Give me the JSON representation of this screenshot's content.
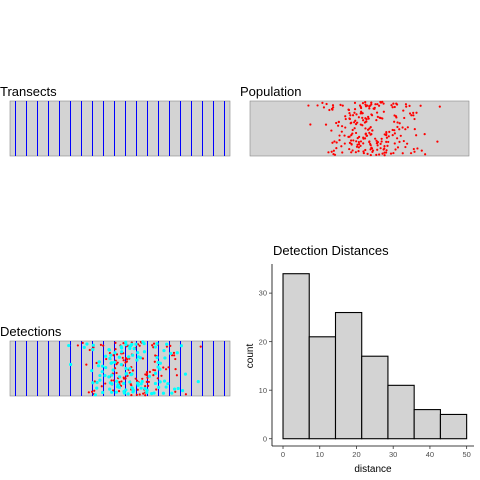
{
  "panels": {
    "transects": {
      "title": "Transects"
    },
    "population": {
      "title": "Population"
    },
    "detections": {
      "title": "Detections"
    },
    "distances": {
      "title": "Detection Distances"
    }
  },
  "colors": {
    "region_fill": "#d3d3d3",
    "region_border": "#888888",
    "transect_line": "#0000ff",
    "animal": "#ff0000",
    "detected": "#00ffff",
    "bar_fill": "#d3d3d3",
    "bar_border": "#000000"
  },
  "chart_data": [
    {
      "type": "line",
      "title": "Transects",
      "transect_count": 20,
      "grid": false
    },
    {
      "type": "scatter",
      "title": "Population",
      "animal_count": 250,
      "grid": false
    },
    {
      "type": "scatter",
      "title": "Detections",
      "transect_count": 20,
      "animal_count": 250,
      "detected_count": 120,
      "grid": false
    },
    {
      "type": "bar",
      "title": "Detection Distances",
      "xlabel": "distance",
      "ylabel": "count",
      "bin_width": 7.14,
      "bins": [
        {
          "x0": 0,
          "x1": 7.14,
          "count": 34
        },
        {
          "x0": 7.14,
          "x1": 14.29,
          "count": 21
        },
        {
          "x0": 14.29,
          "x1": 21.43,
          "count": 26
        },
        {
          "x0": 21.43,
          "x1": 28.57,
          "count": 17
        },
        {
          "x0": 28.57,
          "x1": 35.71,
          "count": 11
        },
        {
          "x0": 35.71,
          "x1": 42.86,
          "count": 6
        },
        {
          "x0": 42.86,
          "x1": 50,
          "count": 5
        }
      ],
      "x_ticks": [
        0,
        10,
        20,
        30,
        40,
        50
      ],
      "y_ticks": [
        0,
        10,
        20,
        30
      ],
      "xlim": [
        -3,
        52
      ],
      "ylim": [
        -1.5,
        36
      ],
      "grid": false
    }
  ]
}
